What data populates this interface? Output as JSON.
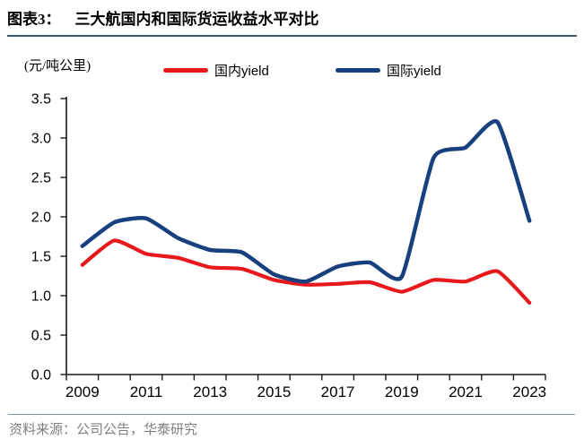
{
  "header": {
    "figure_label": "图表3：",
    "title": "三大航国内和国际货运收益水平对比"
  },
  "chart": {
    "unit_label": "(元/吨公里)",
    "legend": [
      {
        "label": "国内yield",
        "color": "#e8191d"
      },
      {
        "label": "国际yield",
        "color": "#17417e"
      }
    ]
  },
  "chart_data": {
    "type": "line",
    "title": "三大航国内和国际货运收益水平对比",
    "ylabel": "(元/吨公里)",
    "x": [
      2009,
      2010,
      2011,
      2012,
      2013,
      2014,
      2015,
      2016,
      2017,
      2018,
      2019,
      2020,
      2021,
      2022,
      2023
    ],
    "series": [
      {
        "name": "国内yield",
        "color": "#e8191d",
        "values": [
          1.39,
          1.7,
          1.53,
          1.48,
          1.36,
          1.34,
          1.2,
          1.14,
          1.15,
          1.17,
          1.05,
          1.2,
          1.18,
          1.31,
          0.91
        ]
      },
      {
        "name": "国际yield",
        "color": "#17417e",
        "values": [
          1.63,
          1.93,
          1.98,
          1.73,
          1.58,
          1.55,
          1.27,
          1.18,
          1.37,
          1.42,
          1.24,
          2.75,
          2.88,
          3.2,
          1.95
        ]
      }
    ],
    "ylim": [
      0.0,
      3.5
    ],
    "ytick_step": 0.5,
    "ytick_labels": [
      "0.0",
      "0.5",
      "1.0",
      "1.5",
      "2.0",
      "2.5",
      "3.0",
      "3.5"
    ],
    "xtick_labels": [
      "2009",
      "2011",
      "2013",
      "2015",
      "2017",
      "2019",
      "2021",
      "2023"
    ],
    "grid": false,
    "smooth": true,
    "legend_position": "top"
  },
  "footer": {
    "source": "资料来源：公司公告，华泰研究"
  }
}
